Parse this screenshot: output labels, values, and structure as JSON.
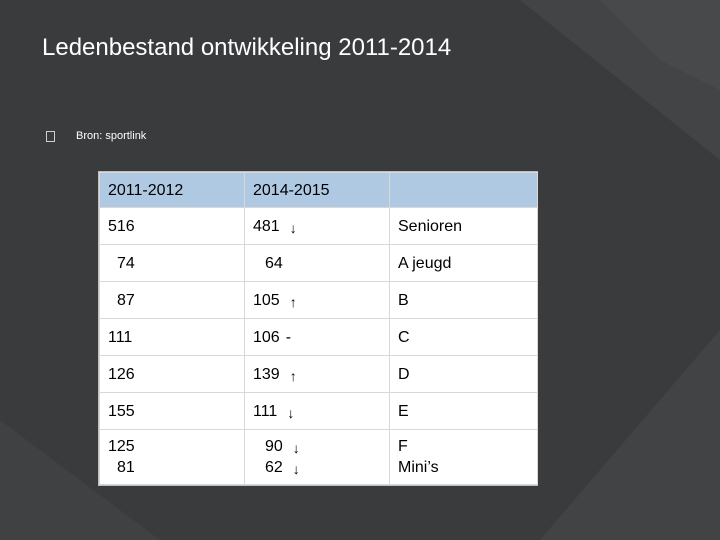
{
  "slide": {
    "title": "Ledenbestand ontwikkeling 2011-2014",
    "source_text": "Bron: sportlink"
  },
  "table": {
    "headers": [
      "2011-2012",
      "2014-2015",
      ""
    ],
    "rows": [
      {
        "y2011": "516",
        "y2014": "481",
        "trend": "↓",
        "cat": "Senioren"
      },
      {
        "y2011": "74",
        "y2014": "64",
        "trend": "",
        "cat": "A jeugd"
      },
      {
        "y2011": "87",
        "y2014": "105",
        "trend": "↑",
        "cat": "B"
      },
      {
        "y2011": "111",
        "y2014": "106",
        "trend": "-",
        "cat": "C"
      },
      {
        "y2011": "126",
        "y2014": "139",
        "trend": "↑",
        "cat": "D"
      },
      {
        "y2011": "155",
        "y2014": "111",
        "trend": "↓",
        "cat": "E"
      },
      {
        "y2011": "125",
        "y2014": "90",
        "trend": "↓",
        "cat": "F"
      },
      {
        "y2011": "81",
        "y2014": "62",
        "trend": "↓",
        "cat": "Mini’s"
      }
    ]
  },
  "colors": {
    "background": "#3a3b3d",
    "header_fill": "#afc9e3"
  }
}
